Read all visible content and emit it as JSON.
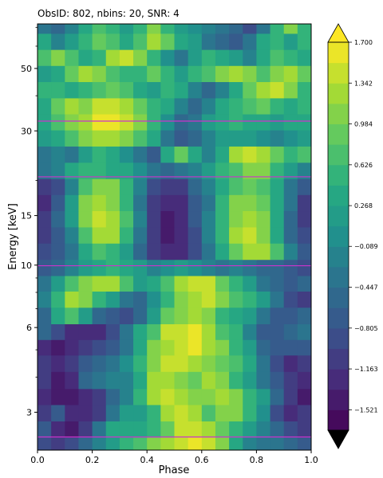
{
  "chart_data": {
    "type": "heatmap",
    "title": "ObsID: 802, nbins: 20, SNR: 4",
    "xlabel": "Phase",
    "ylabel": "Energy [keV]",
    "xlim": [
      0.0,
      1.0
    ],
    "ylim": [
      2.2,
      72.0
    ],
    "y_scale": "log",
    "x_ticks": [
      {
        "value": 0.0,
        "label": "0.0"
      },
      {
        "value": 0.2,
        "label": "0.2"
      },
      {
        "value": 0.4,
        "label": "0.4"
      },
      {
        "value": 0.6,
        "label": "0.6"
      },
      {
        "value": 0.8,
        "label": "0.8"
      },
      {
        "value": 1.0,
        "label": "1.0"
      }
    ],
    "y_ticks": [
      {
        "value": 3,
        "label": "3"
      },
      {
        "value": 6,
        "label": "6"
      },
      {
        "value": 10,
        "label": "10"
      },
      {
        "value": 15,
        "label": "15"
      },
      {
        "value": 30,
        "label": "30"
      },
      {
        "value": 50,
        "label": "50"
      }
    ],
    "y_minor_ticks": [
      4,
      5,
      7,
      8,
      9,
      20,
      40,
      60,
      70
    ],
    "reference_lines_kev": [
      2.45,
      9.95,
      20.6,
      32.5
    ],
    "reference_line_color": "#cc33cc",
    "colormap": "viridis",
    "colorbar": {
      "vmin": -1.7,
      "vmax": 1.7,
      "levels": 19,
      "extend": "both",
      "tick_values": [
        1.7,
        1.342,
        0.984,
        0.626,
        0.268,
        -0.089,
        -0.447,
        -0.805,
        -1.163,
        -1.521
      ],
      "tick_labels": [
        "1.700",
        "1.342",
        "0.984",
        "0.626",
        "0.268",
        "−0.089",
        "−0.447",
        "−0.805",
        "−1.163",
        "−1.521"
      ]
    },
    "phase_bins": [
      0.0,
      0.05,
      0.1,
      0.15,
      0.2,
      0.25,
      0.3,
      0.35,
      0.4,
      0.45,
      0.5,
      0.55,
      0.6,
      0.65,
      0.7,
      0.75,
      0.8,
      0.85,
      0.9,
      0.95,
      1.0
    ],
    "energy_rows_kev": [
      2.3,
      2.6,
      3.0,
      3.4,
      3.9,
      4.5,
      5.1,
      5.8,
      6.6,
      7.6,
      8.6,
      9.8,
      11.2,
      12.8,
      14.6,
      16.7,
      19.0,
      21.7,
      24.8,
      28.3,
      32.3,
      36.8,
      42.0,
      48.0,
      54.7,
      62.4,
      71.2
    ],
    "values": [
      [
        -0.9,
        -1.0,
        -0.9,
        -0.6,
        -0.2,
        0.2,
        0.5,
        0.8,
        1.0,
        1.2,
        1.5,
        1.6,
        1.4,
        1.0,
        0.4,
        -0.1,
        -0.3,
        -0.3,
        -0.5,
        -0.8,
        -0.9
      ],
      [
        -0.7,
        -1.3,
        -1.4,
        -1.0,
        -0.3,
        0.3,
        0.4,
        0.3,
        0.5,
        0.9,
        1.4,
        1.5,
        1.2,
        0.9,
        0.5,
        0.1,
        -0.2,
        -0.6,
        -0.9,
        -1.0,
        -0.8
      ],
      [
        -1.0,
        -0.8,
        -1.2,
        -1.3,
        -1.0,
        -0.4,
        0.1,
        0.2,
        0.6,
        1.3,
        1.5,
        1.2,
        0.8,
        1.0,
        1.1,
        0.6,
        0.0,
        -0.9,
        -1.3,
        -1.1,
        -0.8
      ],
      [
        -1.3,
        -1.4,
        -1.5,
        -1.3,
        -1.0,
        -0.6,
        -0.1,
        0.5,
        1.3,
        1.4,
        1.3,
        1.0,
        1.1,
        1.3,
        1.1,
        0.6,
        0.1,
        -0.6,
        -1.1,
        -1.4,
        -1.3
      ],
      [
        -1.1,
        -1.4,
        -1.2,
        -0.6,
        -0.3,
        -0.2,
        -0.1,
        0.4,
        1.2,
        1.3,
        1.0,
        0.9,
        1.3,
        1.1,
        0.6,
        0.2,
        -0.3,
        -0.8,
        -1.1,
        -1.3,
        -1.2
      ],
      [
        -1.0,
        -1.2,
        -1.0,
        -0.8,
        -0.6,
        -0.4,
        0.0,
        0.6,
        1.1,
        1.5,
        1.4,
        1.2,
        1.0,
        0.9,
        0.8,
        0.3,
        -0.4,
        -0.9,
        -1.2,
        -1.0,
        -0.9
      ],
      [
        -1.2,
        -1.5,
        -1.2,
        -1.1,
        -0.9,
        -0.7,
        -0.3,
        0.4,
        1.0,
        1.2,
        1.5,
        1.7,
        1.2,
        1.0,
        0.6,
        0.1,
        -0.5,
        -0.8,
        -0.8,
        -0.8,
        -1.0
      ],
      [
        -0.6,
        -0.9,
        -1.2,
        -1.3,
        -1.2,
        -0.9,
        -0.4,
        0.3,
        0.7,
        1.4,
        1.5,
        1.6,
        1.3,
        0.8,
        0.5,
        -0.1,
        -0.7,
        -0.8,
        -0.5,
        -0.4,
        -0.7
      ],
      [
        -0.6,
        0.4,
        0.8,
        0.2,
        -0.6,
        -0.8,
        -0.9,
        -0.6,
        0.2,
        0.9,
        1.1,
        1.3,
        1.0,
        0.6,
        0.3,
        0.1,
        -0.4,
        -0.8,
        -0.7,
        -0.5,
        -0.8
      ],
      [
        -0.2,
        0.6,
        1.2,
        1.1,
        0.5,
        0.2,
        -0.3,
        -0.5,
        0.0,
        0.6,
        1.1,
        1.3,
        1.4,
        1.1,
        0.8,
        0.6,
        0.1,
        -0.4,
        -0.9,
        -1.0,
        -0.8
      ],
      [
        -0.4,
        0.2,
        0.8,
        1.0,
        1.2,
        1.3,
        0.8,
        0.2,
        0.3,
        0.8,
        1.2,
        1.4,
        1.4,
        0.9,
        0.6,
        0.2,
        -0.3,
        -0.6,
        -0.8,
        -0.6,
        -0.5
      ],
      [
        -0.8,
        -0.6,
        -0.2,
        0.1,
        0.3,
        0.5,
        0.4,
        0.1,
        -0.2,
        0.0,
        0.2,
        0.0,
        -0.1,
        -0.3,
        -0.2,
        -0.4,
        -0.6,
        -0.5,
        -0.7,
        -0.9,
        -0.8
      ],
      [
        -0.9,
        -0.8,
        -0.4,
        0.3,
        0.7,
        0.6,
        0.1,
        -0.5,
        -1.0,
        -1.2,
        -1.2,
        -0.9,
        -0.3,
        0.4,
        0.9,
        1.2,
        1.3,
        0.7,
        -0.2,
        -0.8,
        -0.9
      ],
      [
        -1.0,
        -0.8,
        -0.1,
        0.8,
        1.3,
        1.2,
        0.6,
        -0.3,
        -1.1,
        -1.4,
        -1.3,
        -0.9,
        -0.2,
        0.6,
        1.2,
        1.4,
        1.1,
        0.4,
        -0.5,
        -0.9,
        -1.0
      ],
      [
        -1.0,
        -0.6,
        0.2,
        1.1,
        1.5,
        1.3,
        0.7,
        -0.2,
        -1.0,
        -1.4,
        -1.2,
        -0.8,
        -0.2,
        0.6,
        1.1,
        1.3,
        1.0,
        0.3,
        -0.5,
        -1.0,
        -1.0
      ],
      [
        -1.2,
        -0.8,
        0.1,
        1.0,
        1.3,
        1.1,
        0.6,
        -0.3,
        -1.0,
        -1.3,
        -1.2,
        -0.8,
        -0.3,
        0.5,
        1.0,
        1.1,
        0.9,
        0.4,
        -0.4,
        -1.0,
        -1.2
      ],
      [
        -1.1,
        -0.9,
        -0.1,
        0.8,
        1.1,
        1.0,
        0.6,
        -0.2,
        -0.9,
        -1.1,
        -1.0,
        -0.6,
        -0.2,
        0.3,
        0.7,
        0.9,
        0.8,
        0.4,
        -0.3,
        -0.8,
        -1.0
      ],
      [
        -0.4,
        -0.1,
        0.3,
        0.6,
        0.5,
        0.4,
        0.3,
        0.0,
        -0.4,
        -0.6,
        -0.4,
        -0.2,
        0.2,
        0.5,
        0.8,
        1.1,
        1.0,
        0.6,
        0.2,
        -0.2,
        -0.4
      ],
      [
        -0.3,
        -0.2,
        -0.3,
        0.1,
        0.5,
        0.4,
        0.0,
        -0.4,
        -0.8,
        0.3,
        0.9,
        0.4,
        -0.2,
        0.3,
        1.2,
        1.5,
        1.2,
        0.9,
        0.6,
        0.8,
        0.5
      ],
      [
        0.1,
        0.4,
        0.8,
        1.1,
        1.2,
        1.2,
        1.0,
        0.7,
        0.3,
        -0.3,
        -0.8,
        -0.6,
        -0.2,
        0.1,
        0.2,
        0.1,
        0.0,
        -0.2,
        0.0,
        0.2,
        0.1
      ],
      [
        0.3,
        0.7,
        1.1,
        1.3,
        1.6,
        1.7,
        1.5,
        1.1,
        0.6,
        0.0,
        -0.6,
        -0.4,
        0.1,
        0.3,
        0.5,
        0.4,
        0.3,
        0.2,
        0.3,
        0.4,
        0.2
      ],
      [
        0.4,
        0.9,
        1.2,
        1.0,
        1.4,
        1.5,
        1.2,
        0.9,
        0.5,
        0.3,
        -0.2,
        -0.5,
        -0.1,
        0.3,
        0.6,
        0.8,
        0.9,
        0.6,
        0.4,
        0.6,
        0.5
      ],
      [
        0.5,
        0.6,
        0.3,
        0.5,
        0.8,
        0.9,
        0.7,
        0.4,
        0.2,
        0.5,
        0.3,
        -0.2,
        -0.6,
        -0.2,
        0.4,
        0.9,
        1.2,
        1.4,
        1.0,
        0.5,
        0.3
      ],
      [
        0.2,
        0.4,
        0.9,
        1.2,
        1.1,
        0.8,
        0.5,
        0.6,
        0.9,
        0.6,
        0.2,
        0.5,
        0.8,
        1.1,
        1.3,
        1.1,
        0.8,
        1.1,
        1.3,
        0.9,
        0.6
      ],
      [
        0.7,
        1.0,
        0.7,
        0.3,
        0.6,
        1.2,
        1.4,
        1.1,
        0.5,
        0.0,
        -0.3,
        0.2,
        0.6,
        0.4,
        0.1,
        -0.2,
        0.3,
        0.8,
        0.6,
        0.3,
        0.4
      ],
      [
        0.3,
        -0.1,
        0.2,
        0.6,
        0.9,
        0.7,
        0.4,
        0.8,
        1.2,
        0.9,
        0.4,
        0.1,
        -0.3,
        -0.5,
        -0.8,
        -0.4,
        0.3,
        0.6,
        0.2,
        0.5,
        0.7
      ],
      [
        -0.3,
        -0.6,
        -0.2,
        0.4,
        0.7,
        0.5,
        0.2,
        0.6,
        1.0,
        0.6,
        0.2,
        0.0,
        -0.2,
        -0.4,
        -0.6,
        -0.9,
        -0.3,
        0.5,
        1.0,
        0.6,
        0.4
      ]
    ]
  }
}
